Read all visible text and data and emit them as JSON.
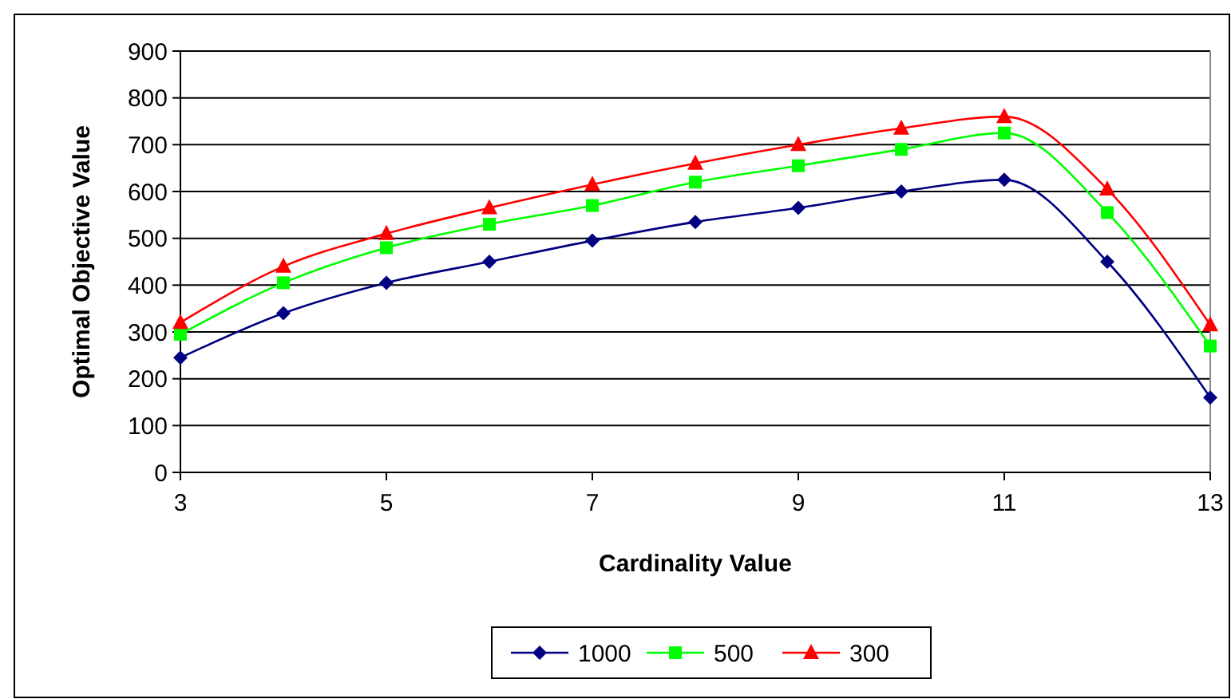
{
  "chart_data": {
    "type": "line",
    "xlabel": "Cardinality Value",
    "ylabel": "Optimal Objective Value",
    "x": [
      3,
      4,
      5,
      6,
      7,
      8,
      9,
      10,
      11,
      12,
      13
    ],
    "series": [
      {
        "name": "1000",
        "color": "#000080",
        "marker": "diamond",
        "values": [
          245,
          340,
          405,
          450,
          495,
          535,
          565,
          600,
          625,
          450,
          160
        ]
      },
      {
        "name": "500",
        "color": "#00ff00",
        "marker": "square",
        "values": [
          295,
          405,
          480,
          530,
          570,
          620,
          655,
          690,
          725,
          555,
          270
        ]
      },
      {
        "name": "300",
        "color": "#ff0000",
        "marker": "triangle",
        "values": [
          320,
          440,
          510,
          565,
          615,
          660,
          700,
          735,
          760,
          605,
          315
        ]
      }
    ],
    "xlim": [
      3,
      13
    ],
    "xticks": [
      3,
      5,
      7,
      9,
      11,
      13
    ],
    "ylim": [
      0,
      900
    ],
    "yticks": [
      0,
      100,
      200,
      300,
      400,
      500,
      600,
      700,
      800,
      900
    ],
    "grid": "y",
    "legend": "bottom"
  }
}
